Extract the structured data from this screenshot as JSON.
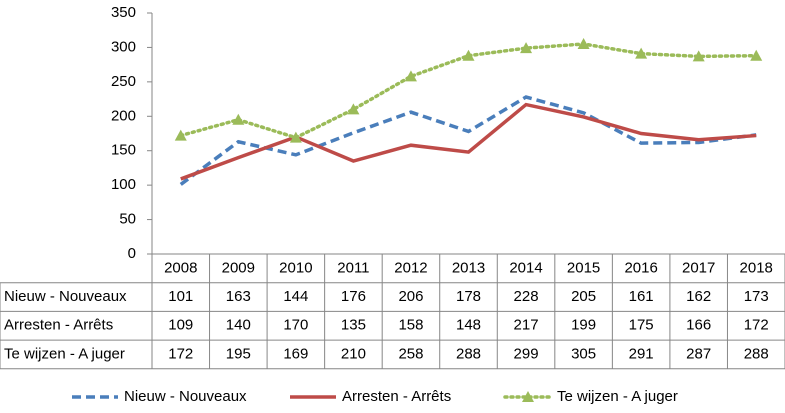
{
  "chart_data": {
    "type": "line",
    "categories": [
      "2008",
      "2009",
      "2010",
      "2011",
      "2012",
      "2013",
      "2014",
      "2015",
      "2016",
      "2017",
      "2018"
    ],
    "series": [
      {
        "name": "Nieuw - Nouveaux",
        "color": "#4a7ebb",
        "style": "dashed",
        "values": [
          101,
          163,
          144,
          176,
          206,
          178,
          228,
          205,
          161,
          162,
          173
        ]
      },
      {
        "name": "Arresten - Arrêts",
        "color": "#be4b48",
        "style": "solid",
        "values": [
          109,
          140,
          170,
          135,
          158,
          148,
          217,
          199,
          175,
          166,
          172
        ]
      },
      {
        "name": "Te wijzen - A juger",
        "color": "#9bbb59",
        "style": "dotted",
        "marker": "triangle",
        "values": [
          172,
          195,
          169,
          210,
          258,
          288,
          299,
          305,
          291,
          287,
          288
        ]
      }
    ],
    "ylim": [
      0,
      350
    ],
    "yticks": [
      0,
      50,
      100,
      150,
      200,
      250,
      300,
      350
    ],
    "grid": false,
    "legend": "bottom",
    "data_table": true
  }
}
